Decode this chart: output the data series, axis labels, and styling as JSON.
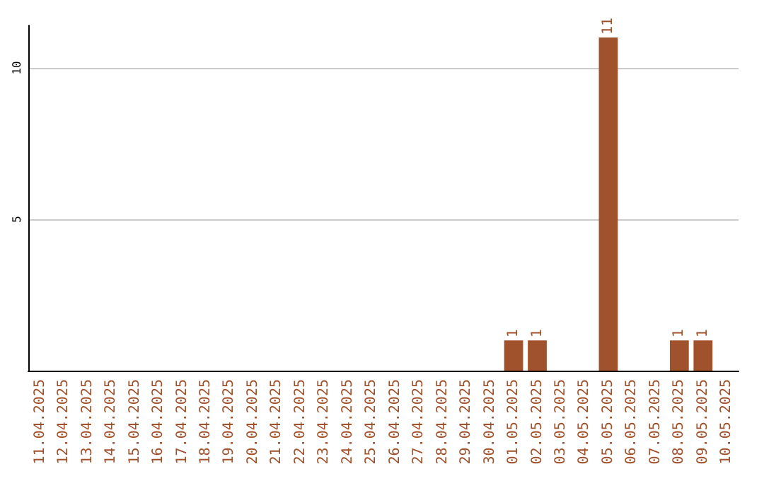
{
  "chart_data": {
    "type": "bar",
    "categories": [
      "11.04.2025",
      "12.04.2025",
      "13.04.2025",
      "14.04.2025",
      "15.04.2025",
      "16.04.2025",
      "17.04.2025",
      "18.04.2025",
      "19.04.2025",
      "20.04.2025",
      "21.04.2025",
      "22.04.2025",
      "23.04.2025",
      "24.04.2025",
      "25.04.2025",
      "26.04.2025",
      "27.04.2025",
      "28.04.2025",
      "29.04.2025",
      "30.04.2025",
      "01.05.2025",
      "02.05.2025",
      "03.05.2025",
      "04.05.2025",
      "05.05.2025",
      "06.05.2025",
      "07.05.2025",
      "08.05.2025",
      "09.05.2025",
      "10.05.2025"
    ],
    "values": [
      0,
      0,
      0,
      0,
      0,
      0,
      0,
      0,
      0,
      0,
      0,
      0,
      0,
      0,
      0,
      0,
      0,
      0,
      0,
      0,
      1,
      1,
      0,
      0,
      11,
      0,
      0,
      1,
      1,
      0
    ],
    "value_labels": [
      null,
      null,
      null,
      null,
      null,
      null,
      null,
      null,
      null,
      null,
      null,
      null,
      null,
      null,
      null,
      null,
      null,
      null,
      null,
      null,
      "1",
      "1",
      null,
      null,
      "11",
      null,
      null,
      "1",
      "1",
      null
    ],
    "color": "#a0522d",
    "ylim": [
      0,
      11.4
    ],
    "yticks": [
      5,
      10
    ],
    "grid": "y"
  }
}
